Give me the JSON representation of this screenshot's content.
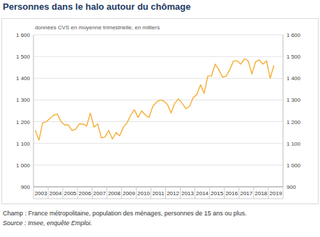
{
  "chart_data": {
    "type": "line",
    "title": "Personnes dans le halo autour du chômage",
    "subtitle": "données CVS en moyenne trimestrielle, en milliers",
    "notes": [
      "Champ : France métropolitaine, population des ménages, personnes de 15 ans ou plus.",
      "Source : Insee, enquête Emploi."
    ],
    "categories": [
      "2003",
      null,
      null,
      null,
      "2004",
      null,
      null,
      null,
      "2005",
      null,
      null,
      null,
      "2006",
      null,
      null,
      null,
      "2007",
      null,
      null,
      null,
      "2008",
      null,
      null,
      null,
      "2009",
      null,
      null,
      null,
      "2010",
      null,
      null,
      null,
      "2011",
      null,
      null,
      null,
      "2012",
      null,
      null,
      null,
      "2013",
      null,
      null,
      null,
      "2014",
      null,
      null,
      null,
      "2015",
      null,
      null,
      null,
      "2016",
      null,
      null,
      null,
      "2017",
      null,
      null,
      null,
      "2018",
      null,
      null,
      null,
      "2019",
      null
    ],
    "values": [
      1160,
      1115,
      1195,
      1200,
      1215,
      1230,
      1235,
      1200,
      1185,
      1185,
      1160,
      1165,
      1190,
      1190,
      1180,
      1240,
      1175,
      1190,
      1125,
      1130,
      1160,
      1120,
      1150,
      1135,
      1175,
      1195,
      1230,
      1255,
      1220,
      1250,
      1230,
      1220,
      1270,
      1290,
      1300,
      1295,
      1280,
      1240,
      1285,
      1305,
      1285,
      1260,
      1270,
      1310,
      1325,
      1370,
      1330,
      1410,
      1410,
      1465,
      1440,
      1405,
      1410,
      1440,
      1480,
      1480,
      1465,
      1490,
      1480,
      1420,
      1475,
      1485,
      1465,
      1480,
      1400,
      1460
    ],
    "color": "#f4ad2f",
    "ylim": [
      900,
      1600
    ],
    "yticks": [
      900,
      {
        "value": 1000,
        "label": "1 000"
      },
      {
        "value": 1100,
        "label": "1 100"
      },
      {
        "value": 1200,
        "label": "1 200"
      },
      {
        "value": 1300,
        "label": "1 300"
      },
      {
        "value": 1400,
        "label": "1 400"
      },
      {
        "value": 1500,
        "label": "1 500"
      },
      {
        "value": 1600,
        "label": "1 600"
      }
    ],
    "grid": true
  }
}
